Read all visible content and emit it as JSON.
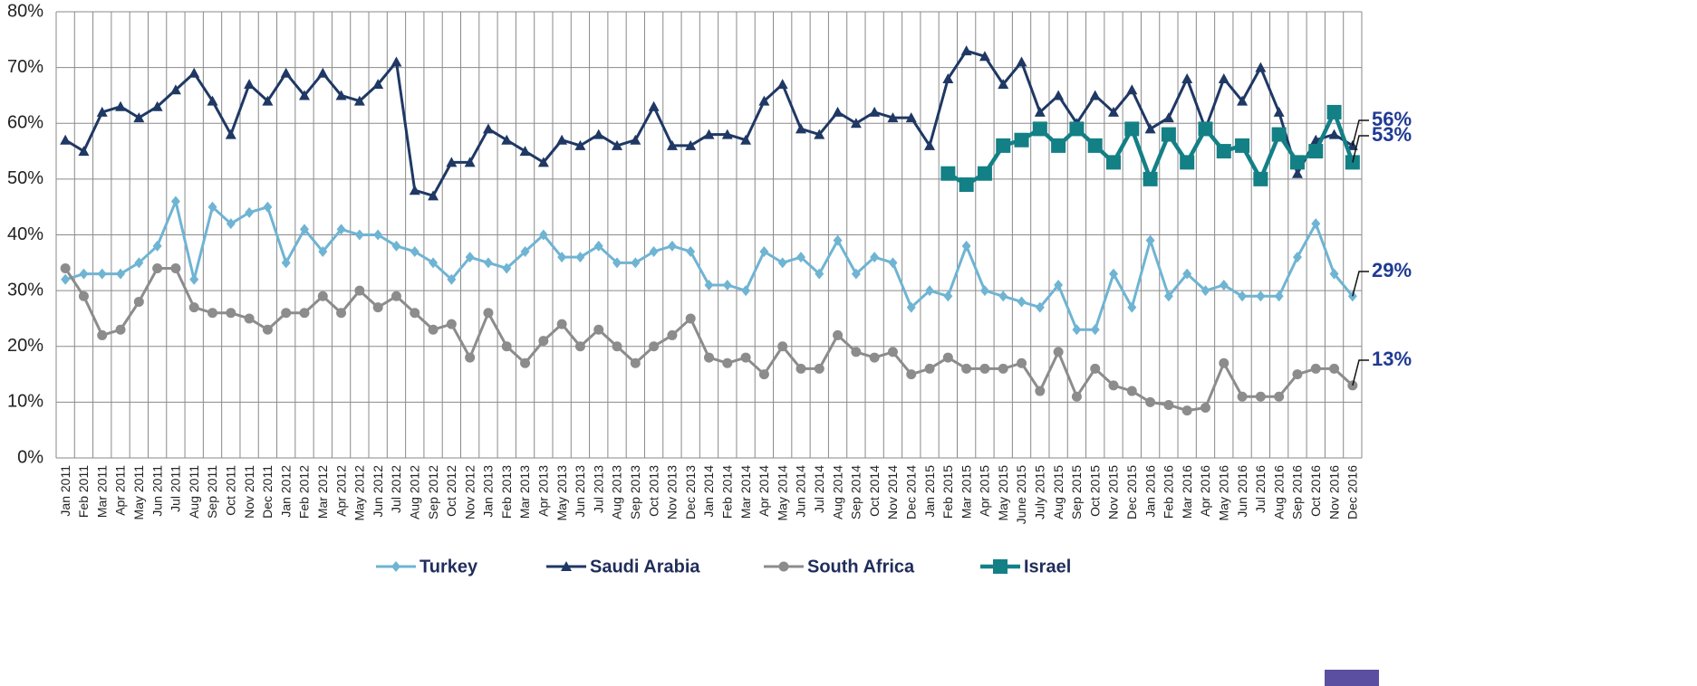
{
  "chart_data": {
    "type": "line",
    "categories": [
      "Jan 2011",
      "Feb 2011",
      "Mar 2011",
      "Apr 2011",
      "May 2011",
      "Jun 2011",
      "Jul 2011",
      "Aug 2011",
      "Sep 2011",
      "Oct 2011",
      "Nov 2011",
      "Dec 2011",
      "Jan 2012",
      "Feb 2012",
      "Mar 2012",
      "Apr 2012",
      "May 2012",
      "Jun 2012",
      "Jul 2012",
      "Aug 2012",
      "Sep 2012",
      "Oct 2012",
      "Nov 2012",
      "Jan 2013",
      "Feb 2013",
      "Mar 2013",
      "Apr 2013",
      "May 2013",
      "Jun 2013",
      "Jul 2013",
      "Aug 2013",
      "Sep 2013",
      "Oct 2013",
      "Nov 2013",
      "Dec 2013",
      "Jan 2014",
      "Feb 2014",
      "Mar 2014",
      "Apr 2014",
      "May 2014",
      "Jun 2014",
      "Jul 2014",
      "Aug 2014",
      "Sep 2014",
      "Oct 2014",
      "Nov 2014",
      "Dec 2014",
      "Jan 2015",
      "Feb 2015",
      "Mar 2015",
      "Apr 2015",
      "May 2015",
      "June 2015",
      "July 2015",
      "Aug 2015",
      "Sep 2015",
      "Oct 2015",
      "Nov 2015",
      "Dec 2015",
      "Jan 2016",
      "Feb 2016",
      "Mar 2016",
      "Apr 2016",
      "May 2016",
      "Jun 2016",
      "Jul 2016",
      "Aug 2016",
      "Sep 2016",
      "Oct 2016",
      "Nov 2016",
      "Dec 2016"
    ],
    "series": [
      {
        "name": "Turkey",
        "color": "#6fb4d3",
        "marker": "diamond",
        "values": [
          32,
          33,
          33,
          33,
          35,
          38,
          46,
          32,
          45,
          42,
          44,
          45,
          35,
          41,
          37,
          41,
          40,
          40,
          38,
          37,
          35,
          32,
          36,
          35,
          34,
          37,
          40,
          36,
          36,
          38,
          35,
          35,
          37,
          38,
          37,
          31,
          31,
          30,
          37,
          35,
          36,
          33,
          39,
          33,
          36,
          35,
          27,
          30,
          29,
          38,
          30,
          29,
          28,
          27,
          31,
          23,
          23,
          33,
          27,
          39,
          29,
          33,
          30,
          31,
          29,
          29,
          29,
          36,
          42,
          33,
          29
        ]
      },
      {
        "name": "Saudi Arabia",
        "color": "#1f3864",
        "marker": "triangle",
        "values": [
          57,
          55,
          62,
          63,
          61,
          63,
          66,
          69,
          64,
          58,
          67,
          64,
          69,
          65,
          69,
          65,
          64,
          67,
          71,
          48,
          47,
          53,
          53,
          59,
          57,
          55,
          53,
          57,
          56,
          58,
          56,
          57,
          63,
          56,
          56,
          58,
          58,
          57,
          64,
          67,
          59,
          58,
          62,
          60,
          62,
          61,
          61,
          56,
          68,
          73,
          72,
          67,
          71,
          62,
          65,
          60,
          65,
          62,
          66,
          59,
          61,
          68,
          59,
          68,
          64,
          70,
          62,
          51,
          57,
          58,
          56
        ]
      },
      {
        "name": "South Africa",
        "color": "#8c8c8c",
        "marker": "circle",
        "values": [
          34,
          29,
          22,
          23,
          28,
          34,
          34,
          27,
          26,
          26,
          25,
          23,
          26,
          26,
          29,
          26,
          30,
          27,
          29,
          26,
          23,
          24,
          18,
          26,
          20,
          17,
          21,
          24,
          20,
          23,
          20,
          17,
          20,
          22,
          25,
          18,
          17,
          18,
          15,
          20,
          16,
          16,
          22,
          19,
          18,
          19,
          15,
          16,
          18,
          16,
          16,
          16,
          17,
          12,
          19,
          11,
          16,
          13,
          12,
          10,
          9.5,
          8.5,
          9,
          17,
          11,
          11,
          11,
          15,
          16,
          16,
          13
        ]
      },
      {
        "name": "Israel",
        "color": "#138086",
        "marker": "square",
        "values": [
          null,
          null,
          null,
          null,
          null,
          null,
          null,
          null,
          null,
          null,
          null,
          null,
          null,
          null,
          null,
          null,
          null,
          null,
          null,
          null,
          null,
          null,
          null,
          null,
          null,
          null,
          null,
          null,
          null,
          null,
          null,
          null,
          null,
          null,
          null,
          null,
          null,
          null,
          null,
          null,
          null,
          null,
          null,
          null,
          null,
          null,
          null,
          null,
          51,
          49,
          51,
          56,
          57,
          59,
          56,
          59,
          56,
          53,
          59,
          50,
          58,
          53,
          59,
          55,
          56,
          50,
          58,
          53,
          55,
          62,
          53
        ]
      }
    ],
    "ylim": [
      0,
      80
    ],
    "yticks": [
      {
        "value": 0,
        "label": "0%"
      },
      {
        "value": 10,
        "label": "10%"
      },
      {
        "value": 20,
        "label": "20%"
      },
      {
        "value": 30,
        "label": "30%"
      },
      {
        "value": 40,
        "label": "40%"
      },
      {
        "value": 50,
        "label": "50%"
      },
      {
        "value": 60,
        "label": "60%"
      },
      {
        "value": 70,
        "label": "70%"
      },
      {
        "value": 80,
        "label": "80%"
      }
    ],
    "grid": true,
    "annotations": [
      "56%",
      "53%",
      "29%",
      "13%"
    ]
  }
}
